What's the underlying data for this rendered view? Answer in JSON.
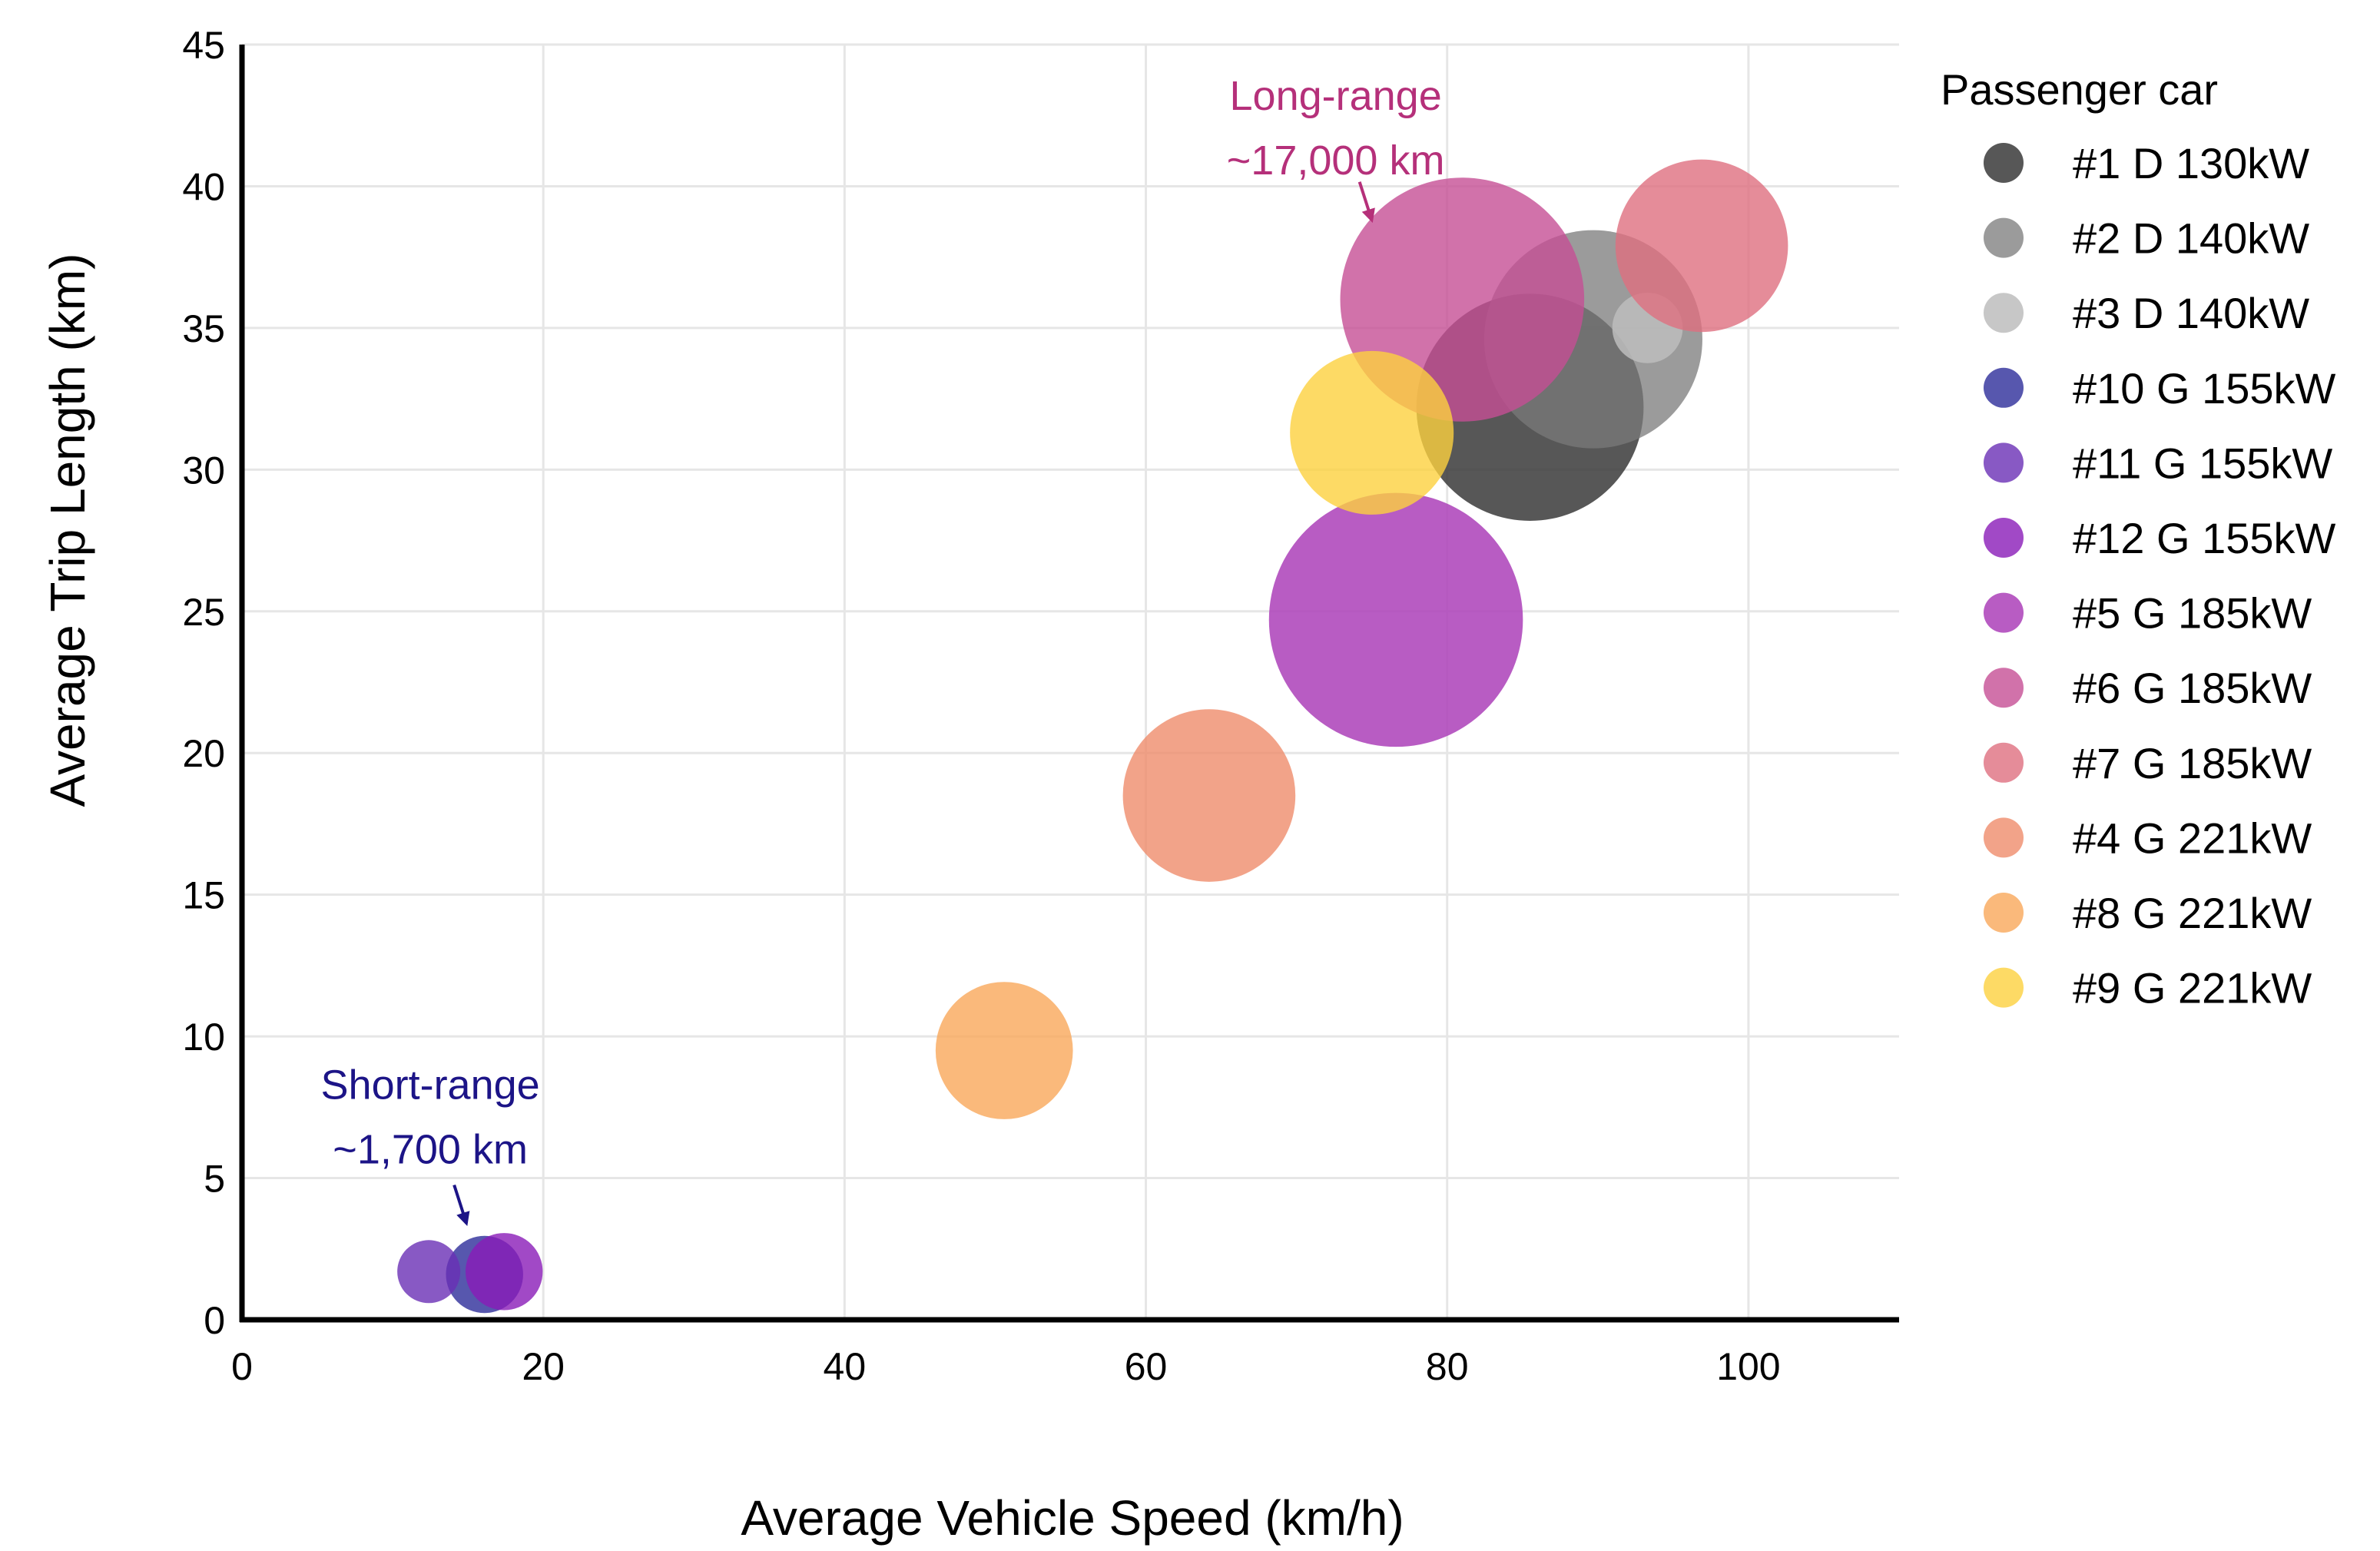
{
  "chart_data": {
    "type": "scatter",
    "subtype": "bubble",
    "title": "",
    "xlabel": "Average Vehicle Speed (km/h)",
    "ylabel": "Average Trip Length (km)",
    "xlim": [
      0,
      110
    ],
    "ylim": [
      0,
      45
    ],
    "xticks": [
      0,
      20,
      40,
      60,
      80,
      100
    ],
    "yticks": [
      0,
      5,
      10,
      15,
      20,
      25,
      30,
      35,
      40,
      45
    ],
    "grid": true,
    "legend": {
      "title": "Passenger car",
      "position": "right"
    },
    "series": [
      {
        "name": "#1 D 130kW",
        "color": "#3a3a3a",
        "opacity": 0.85,
        "points": [
          {
            "x": 85.5,
            "y": 32.2,
            "size": 5200
          }
        ]
      },
      {
        "name": "#2 D 140kW",
        "color": "#7a7a7a",
        "opacity": 0.75,
        "points": [
          {
            "x": 89.7,
            "y": 34.6,
            "size": 4800
          }
        ]
      },
      {
        "name": "#3 D 140kW",
        "color": "#bdbdbd",
        "opacity": 0.85,
        "points": [
          {
            "x": 93.3,
            "y": 35.0,
            "size": 500
          }
        ]
      },
      {
        "name": "#10 G 155kW",
        "color": "#2d2d9a",
        "opacity": 0.8,
        "points": [
          {
            "x": 16.1,
            "y": 1.6,
            "size": 600
          }
        ]
      },
      {
        "name": "#11 G 155kW",
        "color": "#6a2fb5",
        "opacity": 0.8,
        "points": [
          {
            "x": 12.4,
            "y": 1.7,
            "size": 400
          }
        ]
      },
      {
        "name": "#12 G 155kW",
        "color": "#8a1bb8",
        "opacity": 0.8,
        "points": [
          {
            "x": 17.4,
            "y": 1.7,
            "size": 600
          }
        ]
      },
      {
        "name": "#5 G 185kW",
        "color": "#ab3fb8",
        "opacity": 0.85,
        "points": [
          {
            "x": 76.6,
            "y": 24.7,
            "size": 6500
          }
        ]
      },
      {
        "name": "#6 G 185kW",
        "color": "#c54f95",
        "opacity": 0.8,
        "points": [
          {
            "x": 81.0,
            "y": 36.0,
            "size": 6000
          }
        ]
      },
      {
        "name": "#7 G 185kW",
        "color": "#de6f80",
        "opacity": 0.8,
        "points": [
          {
            "x": 96.9,
            "y": 37.9,
            "size": 3000
          }
        ]
      },
      {
        "name": "#4 G 221kW",
        "color": "#ef8c6b",
        "opacity": 0.8,
        "points": [
          {
            "x": 64.2,
            "y": 18.5,
            "size": 3000
          }
        ]
      },
      {
        "name": "#8 G 221kW",
        "color": "#f9a85a",
        "opacity": 0.8,
        "points": [
          {
            "x": 50.6,
            "y": 9.5,
            "size": 1900
          }
        ]
      },
      {
        "name": "#9 G 221kW",
        "color": "#fcd13f",
        "opacity": 0.8,
        "points": [
          {
            "x": 75.0,
            "y": 31.3,
            "size": 2700
          }
        ]
      }
    ],
    "annotations": [
      {
        "lines": [
          "Long-range",
          "~17,000 km"
        ],
        "color": "#b5307a",
        "text_x": 72.6,
        "text_y": 42.7,
        "arrow_to_x": 75.0,
        "arrow_to_y": 38.8
      },
      {
        "lines": [
          "Short-range",
          "~1,700 km"
        ],
        "color": "#1c1487",
        "text_x": 12.5,
        "text_y": 7.8,
        "arrow_to_x": 14.9,
        "arrow_to_y": 3.4
      }
    ]
  }
}
